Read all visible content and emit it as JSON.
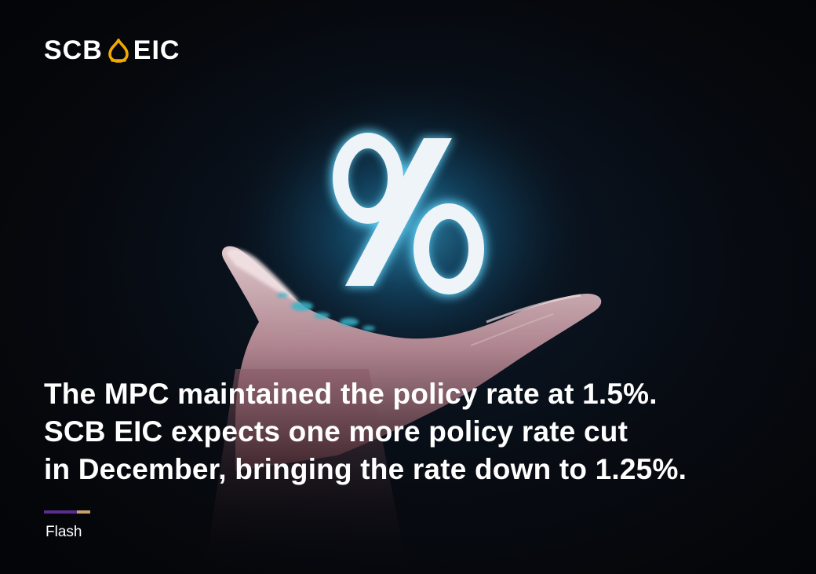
{
  "brand": {
    "logo_left": "SCB",
    "logo_right": "EIC",
    "accent_color": "#F2A900",
    "icon": "scb-lotus-mark-icon"
  },
  "illustration": {
    "symbol": "%",
    "description_icon": "percent-icon"
  },
  "headline": {
    "line1": "The MPC maintained the policy rate at 1.5%.",
    "line2": "SCB EIC expects one more policy rate cut",
    "line3": "in December, bringing the rate down to 1.25%."
  },
  "divider": {
    "color_primary": "#5B2D8E",
    "color_secondary": "#C9A46A"
  },
  "tag": {
    "label": "Flash"
  }
}
